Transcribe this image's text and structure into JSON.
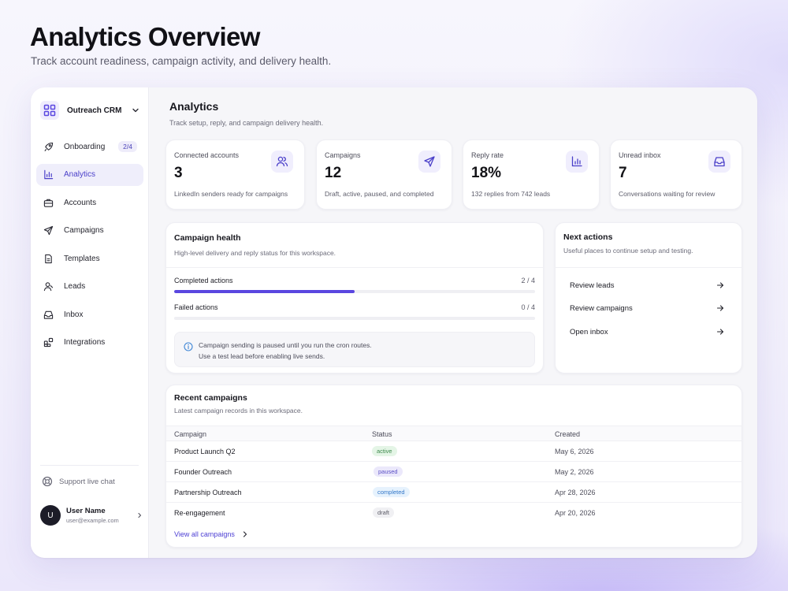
{
  "page": {
    "title": "Analytics Overview",
    "subtitle": "Track account readiness, campaign activity, and delivery health."
  },
  "sidebar": {
    "workspace": "Outreach CRM",
    "items": [
      {
        "label": "Onboarding",
        "icon": "rocket-icon",
        "badge": "2/4"
      },
      {
        "label": "Analytics",
        "icon": "bar-chart-icon",
        "active": true
      },
      {
        "label": "Accounts",
        "icon": "briefcase-icon"
      },
      {
        "label": "Campaigns",
        "icon": "send-icon"
      },
      {
        "label": "Templates",
        "icon": "document-icon"
      },
      {
        "label": "Leads",
        "icon": "user-icon"
      },
      {
        "label": "Inbox",
        "icon": "inbox-icon"
      },
      {
        "label": "Integrations",
        "icon": "puzzle-icon"
      }
    ],
    "support": "Support live chat",
    "user": {
      "initial": "U",
      "name": "User Name",
      "email": "user@example.com"
    }
  },
  "main": {
    "title": "Analytics",
    "subtitle": "Track setup, reply, and campaign delivery health."
  },
  "stats": [
    {
      "label": "Connected accounts",
      "value": "3",
      "desc": "LinkedIn senders ready for campaigns",
      "icon": "users-icon"
    },
    {
      "label": "Campaigns",
      "value": "12",
      "desc": "Draft, active, paused, and completed",
      "icon": "send-icon"
    },
    {
      "label": "Reply rate",
      "value": "18%",
      "desc": "132 replies from 742 leads",
      "icon": "bar-chart-icon"
    },
    {
      "label": "Unread inbox",
      "value": "7",
      "desc": "Conversations waiting for review",
      "icon": "inbox-icon"
    }
  ],
  "health": {
    "title": "Campaign health",
    "subtitle": "High-level delivery and reply status for this workspace.",
    "metrics": [
      {
        "label": "Completed actions",
        "value": "2 / 4",
        "fraction": 0.5
      },
      {
        "label": "Failed actions",
        "value": "0 / 4",
        "fraction": 0
      }
    ],
    "notice_line1": "Campaign sending is paused until you run the cron routes.",
    "notice_line2": "Use a test lead before enabling live sends."
  },
  "next_actions": {
    "title": "Next actions",
    "subtitle": "Useful places to continue setup and testing.",
    "items": [
      "Review leads",
      "Review campaigns",
      "Open inbox"
    ]
  },
  "recent": {
    "title": "Recent campaigns",
    "subtitle": "Latest campaign records in this workspace.",
    "columns": [
      "Campaign",
      "Status",
      "Created"
    ],
    "rows": [
      {
        "name": "Product Launch Q2",
        "status": "active",
        "created": "May 6, 2026"
      },
      {
        "name": "Founder Outreach",
        "status": "paused",
        "created": "May 2, 2026"
      },
      {
        "name": "Partnership Outreach",
        "status": "completed",
        "created": "Apr 28, 2026"
      },
      {
        "name": "Re-engagement",
        "status": "draft",
        "created": "Apr 20, 2026"
      }
    ],
    "view_all": "View all campaigns"
  },
  "colors": {
    "accent": "#5a47e0",
    "accent_soft": "#f0eefd"
  }
}
